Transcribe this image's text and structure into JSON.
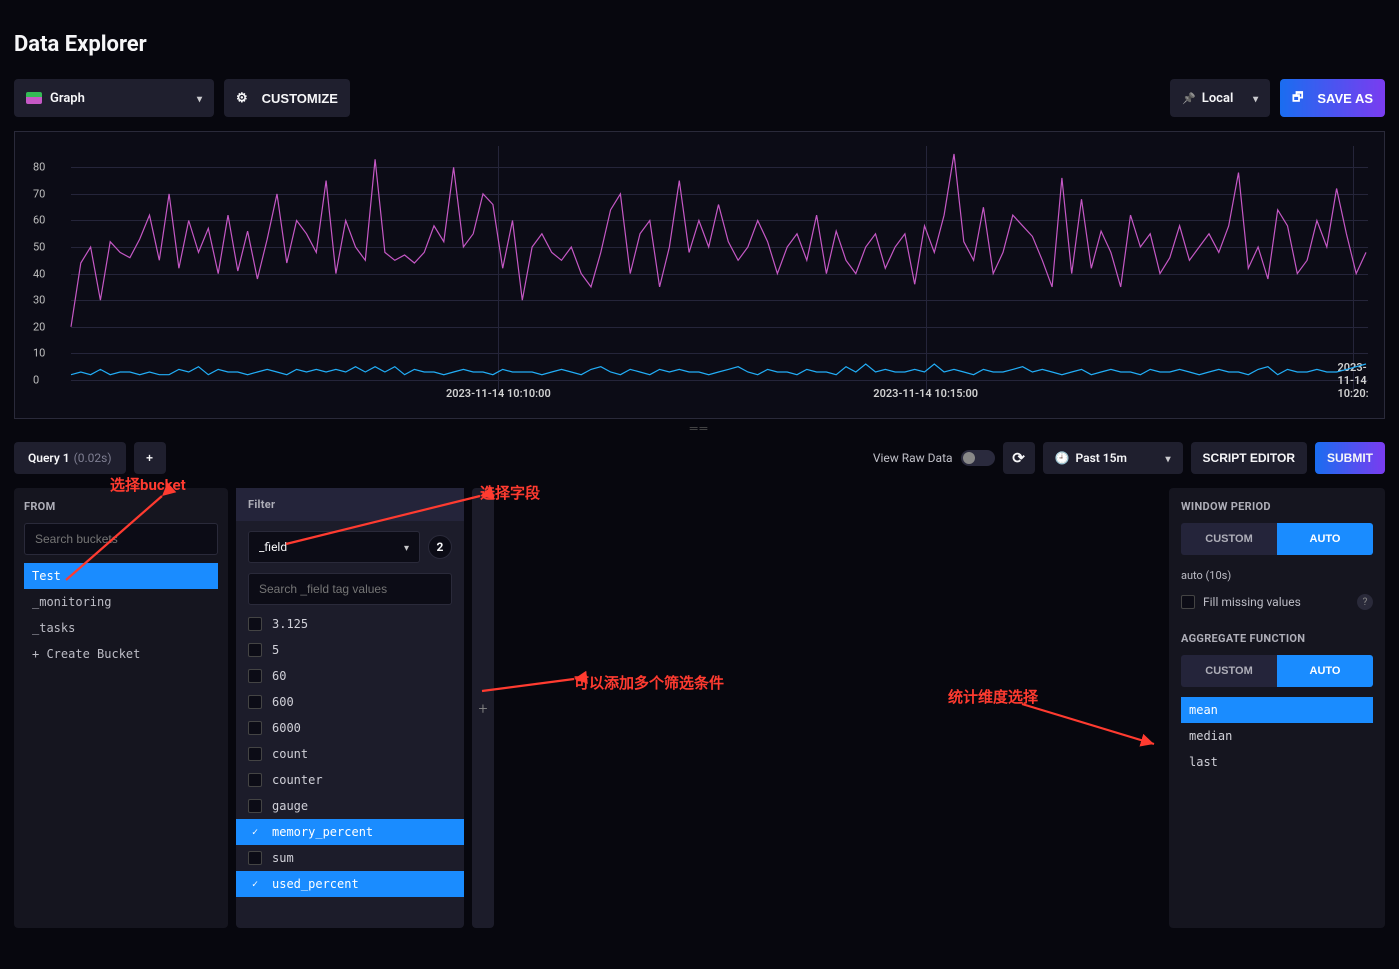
{
  "page_title": "Data Explorer",
  "toolbar": {
    "graph_dropdown": "Graph",
    "customize": "CUSTOMIZE",
    "local": "Local",
    "save_as": "SAVE AS"
  },
  "chart": {
    "type": "line",
    "y_ticks": [
      0,
      10,
      20,
      30,
      40,
      50,
      60,
      70,
      80
    ],
    "x_ticks": [
      "2023-11-14 10:10:00",
      "2023-11-14 10:15:00",
      "2023-11-14 10:20:"
    ],
    "x_tick_positions": [
      0.33,
      0.66,
      0.99
    ],
    "ylim": [
      0,
      88
    ],
    "grid_color": "#25253a",
    "background_color": "#0c0c16",
    "series": [
      {
        "name": "memory_percent",
        "color": "#c558c5",
        "line_width": 1.2,
        "values": [
          20,
          44,
          50,
          30,
          52,
          48,
          46,
          53,
          62,
          45,
          70,
          42,
          60,
          48,
          57,
          40,
          62,
          41,
          56,
          38,
          53,
          70,
          44,
          60,
          55,
          48,
          75,
          40,
          60,
          50,
          45,
          83,
          48,
          45,
          47,
          44,
          48,
          58,
          52,
          80,
          50,
          55,
          70,
          66,
          42,
          60,
          30,
          50,
          55,
          48,
          45,
          50,
          40,
          35,
          48,
          64,
          70,
          40,
          55,
          60,
          35,
          50,
          75,
          48,
          60,
          50,
          66,
          52,
          45,
          50,
          60,
          52,
          40,
          50,
          55,
          45,
          62,
          40,
          56,
          45,
          40,
          50,
          55,
          42,
          50,
          55,
          36,
          58,
          48,
          62,
          85,
          52,
          45,
          65,
          40,
          48,
          62,
          58,
          54,
          45,
          35,
          76,
          40,
          68,
          42,
          56,
          48,
          35,
          62,
          50,
          55,
          40,
          46,
          58,
          45,
          50,
          55,
          48,
          58,
          78,
          42,
          50,
          38,
          64,
          58,
          40,
          45,
          60,
          50,
          72,
          55,
          40,
          48
        ]
      },
      {
        "name": "used_percent",
        "color": "#22adf6",
        "line_width": 1.2,
        "values": [
          2,
          3,
          2,
          4,
          2,
          3,
          3,
          2,
          3,
          2,
          2,
          4,
          3,
          5,
          2,
          4,
          3,
          3,
          2,
          3,
          4,
          3,
          2,
          4,
          3,
          4,
          3,
          4,
          3,
          5,
          3,
          5,
          3,
          5,
          2,
          4,
          3,
          3,
          2,
          3,
          4,
          3,
          3,
          2,
          4,
          3,
          3,
          3,
          2,
          3,
          4,
          3,
          2,
          4,
          5,
          3,
          2,
          4,
          3,
          2,
          4,
          3,
          4,
          3,
          3,
          2,
          3,
          4,
          5,
          3,
          2,
          4,
          3,
          3,
          2,
          4,
          3,
          3,
          2,
          5,
          3,
          6,
          3,
          4,
          3,
          3,
          4,
          3,
          6,
          3,
          4,
          3,
          2,
          4,
          3,
          3,
          4,
          5,
          3,
          4,
          3,
          2,
          3,
          4,
          2,
          3,
          4,
          3,
          3,
          2,
          4,
          3,
          3,
          4,
          3,
          2,
          3,
          4,
          3,
          3,
          2,
          4,
          5,
          2,
          4,
          3,
          3,
          4,
          3,
          3,
          4,
          5,
          6
        ]
      }
    ]
  },
  "query_bar": {
    "tab_label": "Query 1",
    "tab_time": "(0.02s)",
    "add": "+",
    "view_raw": "View Raw Data",
    "time_range": "Past 15m",
    "script_editor": "SCRIPT EDITOR",
    "submit": "SUBMIT"
  },
  "from_panel": {
    "header": "FROM",
    "search_placeholder": "Search buckets",
    "items": [
      {
        "label": "Test",
        "selected": true
      },
      {
        "label": "_monitoring",
        "selected": false
      },
      {
        "label": "_tasks",
        "selected": false
      },
      {
        "label": "+ Create Bucket",
        "selected": false
      }
    ]
  },
  "filter_panel": {
    "header": "Filter",
    "field": "_field",
    "count": "2",
    "search_placeholder": "Search _field tag values",
    "items": [
      {
        "label": "3.125",
        "checked": false
      },
      {
        "label": "5",
        "checked": false
      },
      {
        "label": "60",
        "checked": false
      },
      {
        "label": "600",
        "checked": false
      },
      {
        "label": "6000",
        "checked": false
      },
      {
        "label": "count",
        "checked": false
      },
      {
        "label": "counter",
        "checked": false
      },
      {
        "label": "gauge",
        "checked": false
      },
      {
        "label": "memory_percent",
        "checked": true
      },
      {
        "label": "sum",
        "checked": false
      },
      {
        "label": "used_percent",
        "checked": true
      }
    ]
  },
  "window_panel": {
    "header_period": "WINDOW PERIOD",
    "custom": "CUSTOM",
    "auto": "AUTO",
    "auto_hint": "auto (10s)",
    "fill_missing": "Fill missing values",
    "header_agg": "AGGREGATE FUNCTION",
    "agg_items": [
      {
        "label": "mean",
        "selected": true
      },
      {
        "label": "median",
        "selected": false
      },
      {
        "label": "last",
        "selected": false
      }
    ]
  },
  "annotations": {
    "a1": "选择bucket",
    "a2": "选择字段",
    "a3": "可以添加多个筛选条件",
    "a4": "统计维度选择"
  },
  "colors": {
    "accent": "#1a8cff",
    "panel": "#1a1a2a",
    "bg": "#07070e",
    "text_muted": "#aeaeb8",
    "anno": "#ff3b30"
  }
}
